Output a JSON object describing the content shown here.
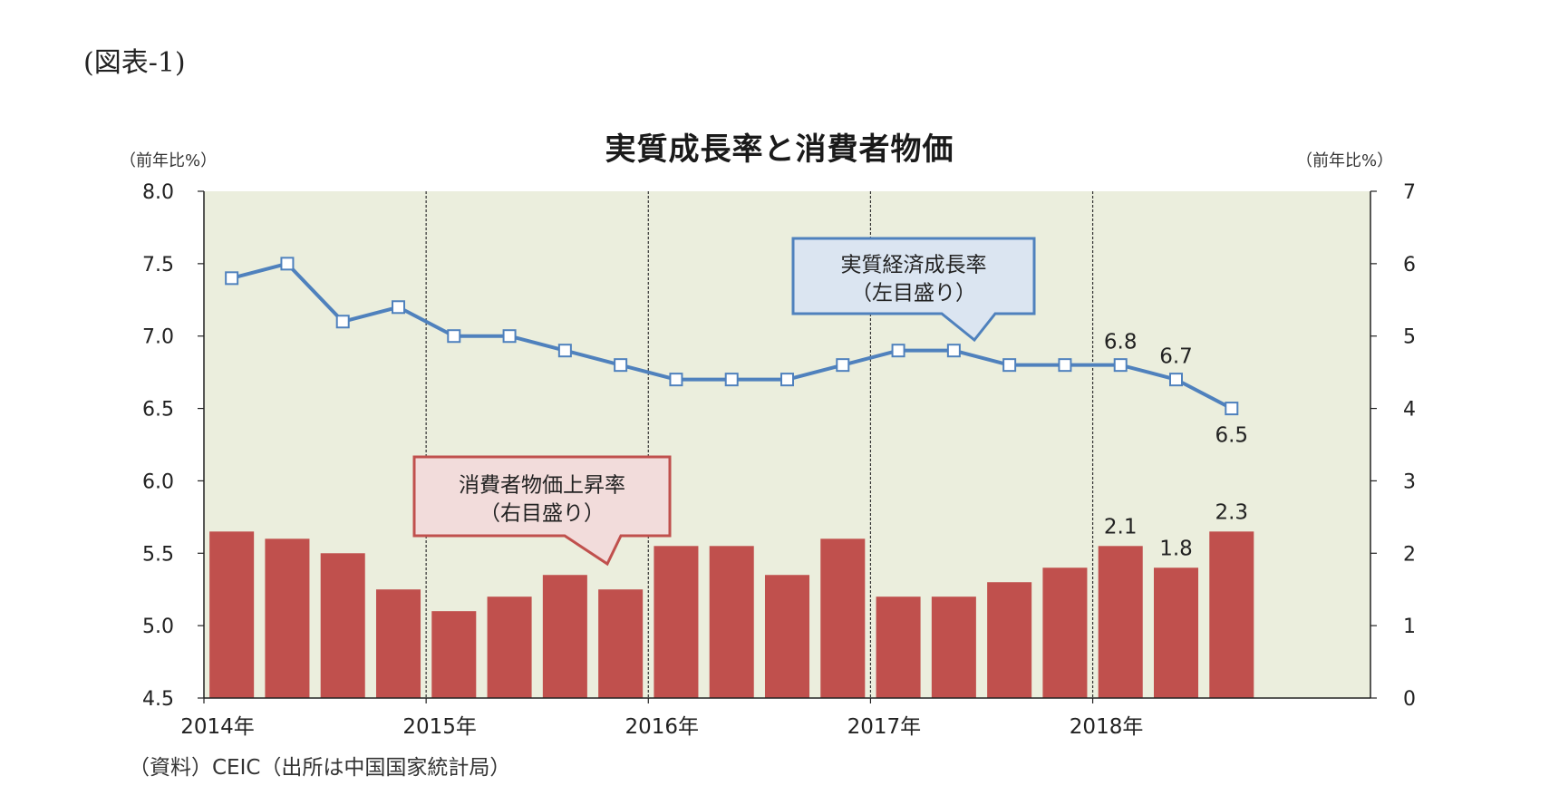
{
  "figure_label": "(図表-1)",
  "source": "（資料）CEIC（出所は中国国家統計局）",
  "colors": {
    "plot_bg": "#ebeedd",
    "bar": "#c0504d",
    "line": "#4f81bd",
    "axis": "#222222"
  },
  "callouts": {
    "gdp": {
      "line1": "実質経済成長率",
      "line2": "（左目盛り）"
    },
    "cpi": {
      "line1": "消費者物価上昇率",
      "line2": "（右目盛り）"
    }
  },
  "chart_data": {
    "type": "bar+line",
    "title": "実質成長率と消費者物価",
    "left_axis": {
      "label": "（前年比%）",
      "ylim": [
        4.5,
        8.0
      ],
      "ticks": [
        "8.0",
        "7.5",
        "7.0",
        "6.5",
        "6.0",
        "5.5",
        "5.0",
        "4.5"
      ]
    },
    "right_axis": {
      "label": "（前年比%）",
      "ylim": [
        0,
        7
      ],
      "ticks": [
        "7",
        "6",
        "5",
        "4",
        "3",
        "2",
        "1",
        "0"
      ]
    },
    "x_labels": [
      "2014年",
      "2015年",
      "2016年",
      "2017年",
      "2018年"
    ],
    "series": [
      {
        "name": "実質経済成長率",
        "type": "line",
        "axis": "left",
        "values": [
          7.4,
          7.5,
          7.1,
          7.2,
          7.0,
          7.0,
          6.9,
          6.8,
          6.7,
          6.7,
          6.7,
          6.8,
          6.9,
          6.9,
          6.8,
          6.8,
          6.8,
          6.7,
          6.5
        ]
      },
      {
        "name": "消費者物価上昇率",
        "type": "bar",
        "axis": "right",
        "values": [
          2.3,
          2.2,
          2.0,
          1.5,
          1.2,
          1.4,
          1.7,
          1.5,
          2.1,
          2.1,
          1.7,
          2.2,
          1.4,
          1.4,
          1.6,
          1.8,
          2.1,
          1.8,
          2.3
        ]
      }
    ],
    "data_labels": {
      "line": [
        {
          "index": 16,
          "text": "6.8"
        },
        {
          "index": 17,
          "text": "6.7"
        },
        {
          "index": 18,
          "text": "6.5"
        }
      ],
      "bar": [
        {
          "index": 16,
          "text": "2.1"
        },
        {
          "index": 17,
          "text": "1.8"
        },
        {
          "index": 18,
          "text": "2.3"
        }
      ]
    }
  }
}
